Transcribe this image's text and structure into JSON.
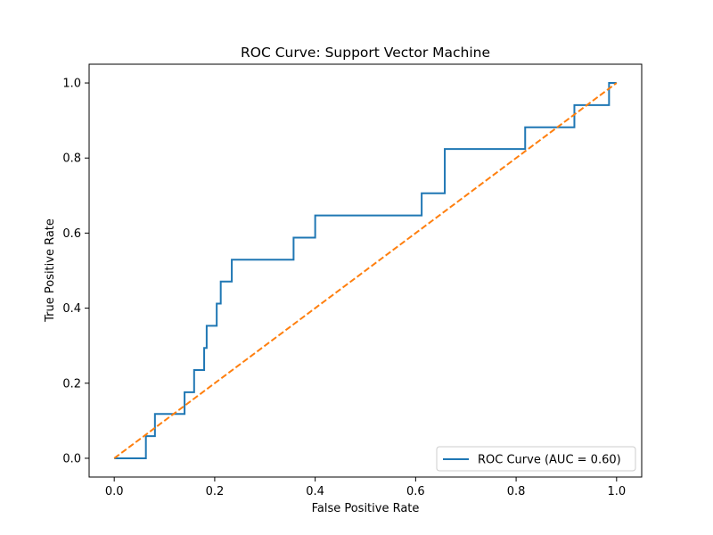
{
  "chart_data": {
    "type": "line",
    "title": "ROC Curve: Support Vector Machine",
    "xlabel": "False Positive Rate",
    "ylabel": "True Positive Rate",
    "xlim": [
      -0.05,
      1.05
    ],
    "ylim": [
      -0.05,
      1.05
    ],
    "xticks": [
      0.0,
      0.2,
      0.4,
      0.6,
      0.8,
      1.0
    ],
    "yticks": [
      0.0,
      0.2,
      0.4,
      0.6,
      0.8,
      1.0
    ],
    "xtick_labels": [
      "0.0",
      "0.2",
      "0.4",
      "0.6",
      "0.8",
      "1.0"
    ],
    "ytick_labels": [
      "0.0",
      "0.2",
      "0.4",
      "0.6",
      "0.8",
      "1.0"
    ],
    "grid": false,
    "legend_position": "lower-right",
    "series": [
      {
        "name": "ROC Curve (AUC = 0.60)",
        "style": "solid-step",
        "color": "#1f77b4",
        "x": [
          0.0,
          0.063,
          0.063,
          0.081,
          0.081,
          0.14,
          0.14,
          0.159,
          0.159,
          0.179,
          0.179,
          0.184,
          0.184,
          0.204,
          0.204,
          0.212,
          0.212,
          0.234,
          0.234,
          0.357,
          0.357,
          0.4,
          0.4,
          0.612,
          0.612,
          0.658,
          0.658,
          0.818,
          0.818,
          0.916,
          0.916,
          0.985,
          0.985,
          1.0
        ],
        "y": [
          0.0,
          0.0,
          0.059,
          0.059,
          0.118,
          0.118,
          0.176,
          0.176,
          0.235,
          0.235,
          0.294,
          0.294,
          0.353,
          0.353,
          0.412,
          0.412,
          0.471,
          0.471,
          0.529,
          0.529,
          0.588,
          0.588,
          0.647,
          0.647,
          0.706,
          0.706,
          0.824,
          0.824,
          0.882,
          0.882,
          0.941,
          0.941,
          1.0,
          1.0
        ]
      },
      {
        "name": "",
        "style": "dashed",
        "color": "#ff7f0e",
        "x": [
          0.0,
          1.0
        ],
        "y": [
          0.0,
          1.0
        ]
      }
    ],
    "legend": [
      {
        "label": "ROC Curve (AUC = 0.60)",
        "color": "#1f77b4"
      }
    ]
  }
}
